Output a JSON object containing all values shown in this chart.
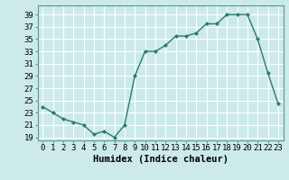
{
  "x": [
    0,
    1,
    2,
    3,
    4,
    5,
    6,
    7,
    8,
    9,
    10,
    11,
    12,
    13,
    14,
    15,
    16,
    17,
    18,
    19,
    20,
    21,
    22,
    23
  ],
  "y": [
    24,
    23,
    22,
    21.5,
    21,
    19.5,
    20,
    19,
    21,
    29,
    33,
    33,
    34,
    35.5,
    35.5,
    36,
    37.5,
    37.5,
    39,
    39,
    39,
    35,
    29.5,
    24.5
  ],
  "line_color": "#2d7a6a",
  "marker_color": "#2d7a6a",
  "bg_color": "#cceaea",
  "grid_color": "#ffffff",
  "xlabel": "Humidex (Indice chaleur)",
  "ylim": [
    18.5,
    40.5
  ],
  "xlim": [
    -0.5,
    23.5
  ],
  "yticks": [
    19,
    21,
    23,
    25,
    27,
    29,
    31,
    33,
    35,
    37,
    39
  ],
  "xtick_labels": [
    "0",
    "1",
    "2",
    "3",
    "4",
    "5",
    "6",
    "7",
    "8",
    "9",
    "10",
    "11",
    "12",
    "13",
    "14",
    "15",
    "16",
    "17",
    "18",
    "19",
    "20",
    "21",
    "22",
    "23"
  ],
  "font_size_xlabel": 7.5,
  "font_size_ticks": 6.5
}
